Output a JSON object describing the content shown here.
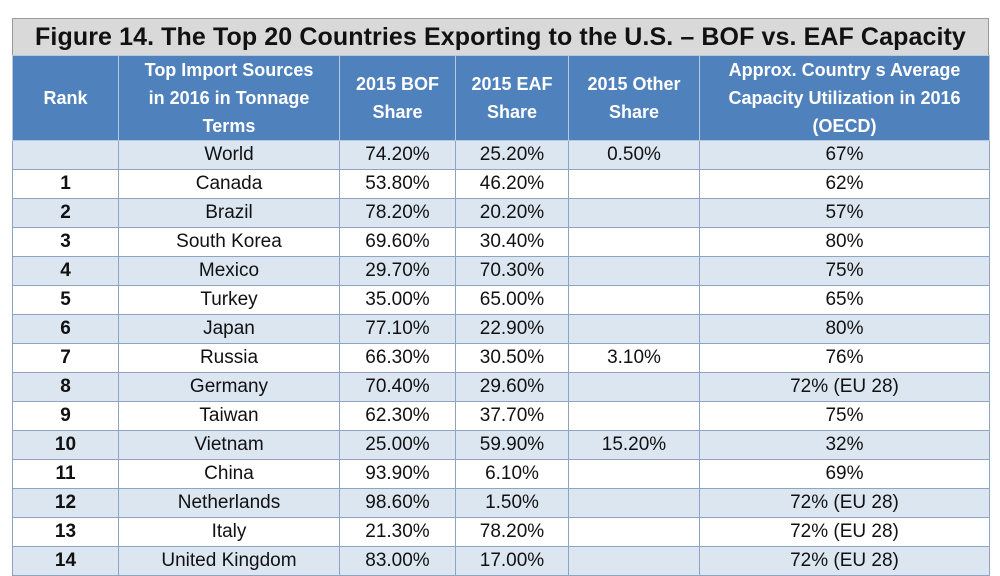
{
  "title": "Figure 14. The Top 20 Countries Exporting to the U.S. – BOF vs. EAF Capacity",
  "headers": {
    "rank": "Rank",
    "source_line1": "Top Import Sources",
    "source_line2": "in 2016 in Tonnage",
    "source_line3": "Terms",
    "bof_line1": "2015 BOF",
    "bof_line2": "Share",
    "eaf_line1": "2015 EAF",
    "eaf_line2": "Share",
    "other_line1": "2015 Other",
    "other_line2": "Share",
    "util_line1": "Approx. Country s Average",
    "util_line2": "Capacity Utilization in 2016",
    "util_line3": "(OECD)"
  },
  "rows": [
    {
      "rank": "",
      "country": "World",
      "bof": "74.20%",
      "eaf": "25.20%",
      "other": "0.50%",
      "util": "67%"
    },
    {
      "rank": "1",
      "country": "Canada",
      "bof": "53.80%",
      "eaf": "46.20%",
      "other": "",
      "util": "62%"
    },
    {
      "rank": "2",
      "country": "Brazil",
      "bof": "78.20%",
      "eaf": "20.20%",
      "other": "",
      "util": "57%"
    },
    {
      "rank": "3",
      "country": "South Korea",
      "bof": "69.60%",
      "eaf": "30.40%",
      "other": "",
      "util": "80%"
    },
    {
      "rank": "4",
      "country": "Mexico",
      "bof": "29.70%",
      "eaf": "70.30%",
      "other": "",
      "util": "75%"
    },
    {
      "rank": "5",
      "country": "Turkey",
      "bof": "35.00%",
      "eaf": "65.00%",
      "other": "",
      "util": "65%"
    },
    {
      "rank": "6",
      "country": "Japan",
      "bof": "77.10%",
      "eaf": "22.90%",
      "other": "",
      "util": "80%"
    },
    {
      "rank": "7",
      "country": "Russia",
      "bof": "66.30%",
      "eaf": "30.50%",
      "other": "3.10%",
      "util": "76%"
    },
    {
      "rank": "8",
      "country": "Germany",
      "bof": "70.40%",
      "eaf": "29.60%",
      "other": "",
      "util": "72% (EU 28)"
    },
    {
      "rank": "9",
      "country": "Taiwan",
      "bof": "62.30%",
      "eaf": "37.70%",
      "other": "",
      "util": "75%"
    },
    {
      "rank": "10",
      "country": "Vietnam",
      "bof": "25.00%",
      "eaf": "59.90%",
      "other": "15.20%",
      "util": "32%"
    },
    {
      "rank": "11",
      "country": "China",
      "bof": "93.90%",
      "eaf": "6.10%",
      "other": "",
      "util": "69%"
    },
    {
      "rank": "12",
      "country": "Netherlands",
      "bof": "98.60%",
      "eaf": "1.50%",
      "other": "",
      "util": "72% (EU 28)"
    },
    {
      "rank": "13",
      "country": "Italy",
      "bof": "21.30%",
      "eaf": "78.20%",
      "other": "",
      "util": "72% (EU 28)"
    },
    {
      "rank": "14",
      "country": "United Kingdom",
      "bof": "83.00%",
      "eaf": "17.00%",
      "other": "",
      "util": "72% (EU 28)"
    }
  ]
}
